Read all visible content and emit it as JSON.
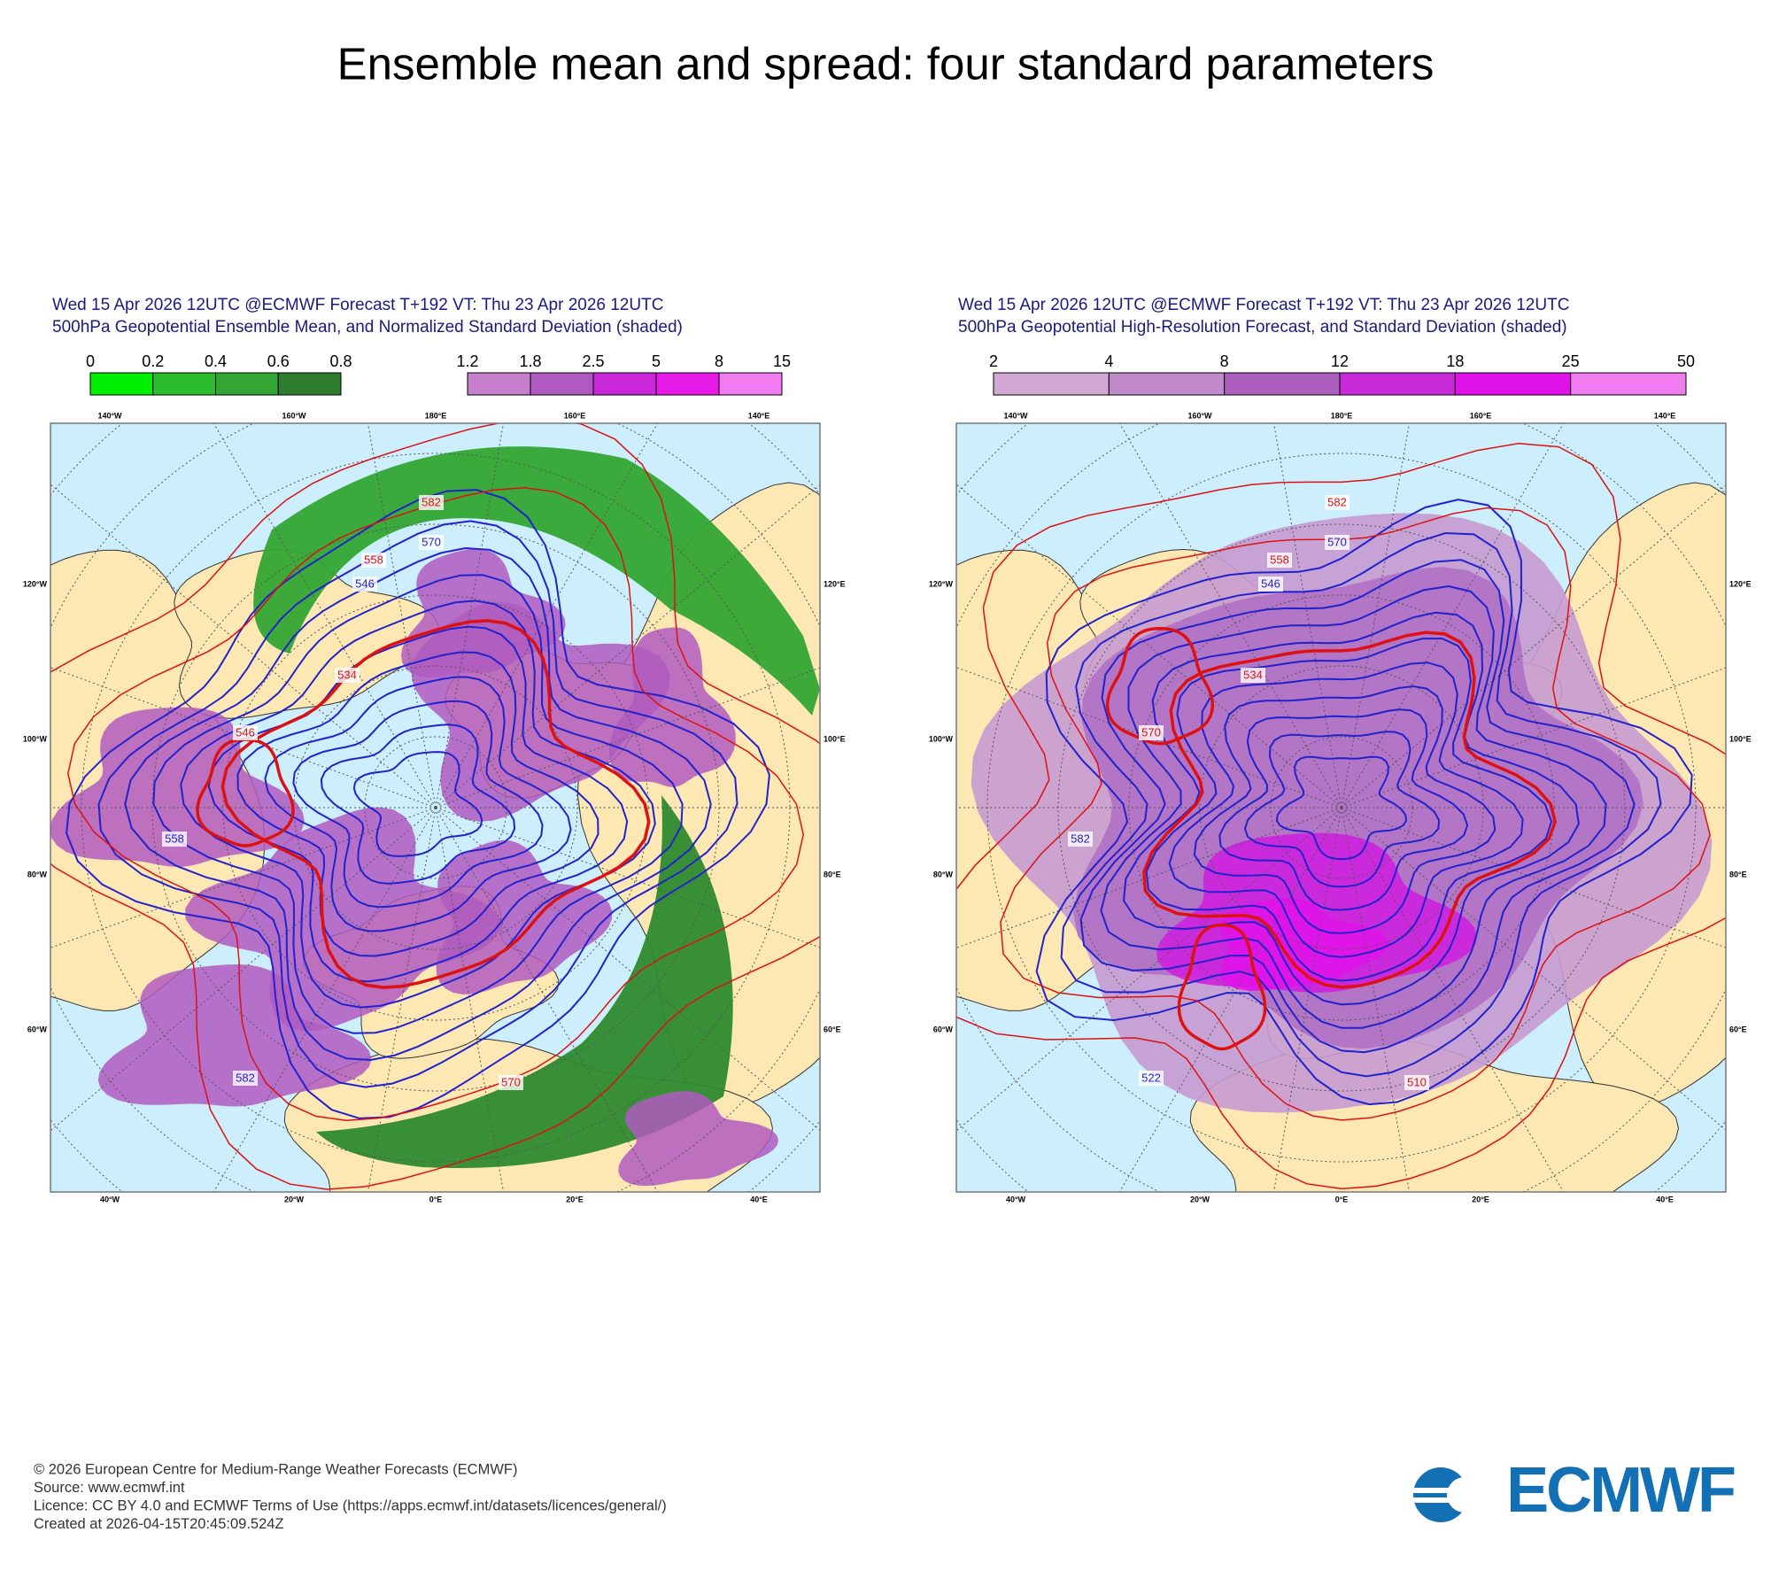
{
  "title": "Ensemble mean and spread: four standard parameters",
  "panels": [
    {
      "header": [
        "Wed 15 Apr 2026 12UTC @ECMWF Forecast T+192 VT: Thu 23 Apr 2026 12UTC",
        "500hPa Geopotential Ensemble Mean, and Normalized Standard Deviation (shaded)"
      ],
      "colorbars": [
        {
          "ticks": [
            0,
            0.2,
            0.4,
            0.6,
            0.8
          ],
          "colors": [
            "#00ee00",
            "#2cbd2c",
            "#33a533",
            "#2e7d2e"
          ]
        },
        {
          "ticks": [
            1.2,
            1.8,
            2.5,
            5,
            8,
            15
          ],
          "colors": [
            "#c480cc",
            "#b05ac0",
            "#c828d8",
            "#e81ae8",
            "#f07cf0"
          ]
        }
      ],
      "contour_labels": [
        "582",
        "570",
        "558",
        "546",
        "534",
        "582",
        "570",
        "558",
        "546"
      ]
    },
    {
      "header": [
        "Wed 15 Apr 2026 12UTC @ECMWF Forecast T+192 VT: Thu 23 Apr 2026 12UTC",
        "500hPa Geopotential High-Resolution Forecast, and Standard Deviation (shaded)"
      ],
      "colorbars": [
        {
          "ticks": [
            2,
            4,
            8,
            12,
            18,
            25,
            50
          ],
          "colors": [
            "#d2a8d4",
            "#c08acb",
            "#ad5fc0",
            "#c82ad8",
            "#e012e8",
            "#f07cf0"
          ]
        }
      ],
      "contour_labels": [
        "582",
        "570",
        "558",
        "546",
        "534",
        "522",
        "510",
        "582",
        "570"
      ]
    }
  ],
  "map_labels": {
    "top": [
      "140°W",
      "160°W",
      "180°E",
      "160°E",
      "140°E"
    ],
    "left": [
      "120°W",
      "100°W",
      "80°W",
      "60°W"
    ],
    "right": [
      "120°E",
      "100°E",
      "80°E",
      "60°E"
    ],
    "bottom": [
      "40°W",
      "20°W",
      "0°E",
      "20°E",
      "40°E"
    ]
  },
  "footer": [
    "© 2026 European Centre for Medium-Range Weather Forecasts (ECMWF)",
    "Source: www.ecmwf.int",
    "Licence: CC BY 4.0 and ECMWF Terms of Use (https://apps.ecmwf.int/datasets/licences/general/)",
    "Created at 2026-04-15T20:45:09.524Z"
  ],
  "logo": "ECMWF"
}
